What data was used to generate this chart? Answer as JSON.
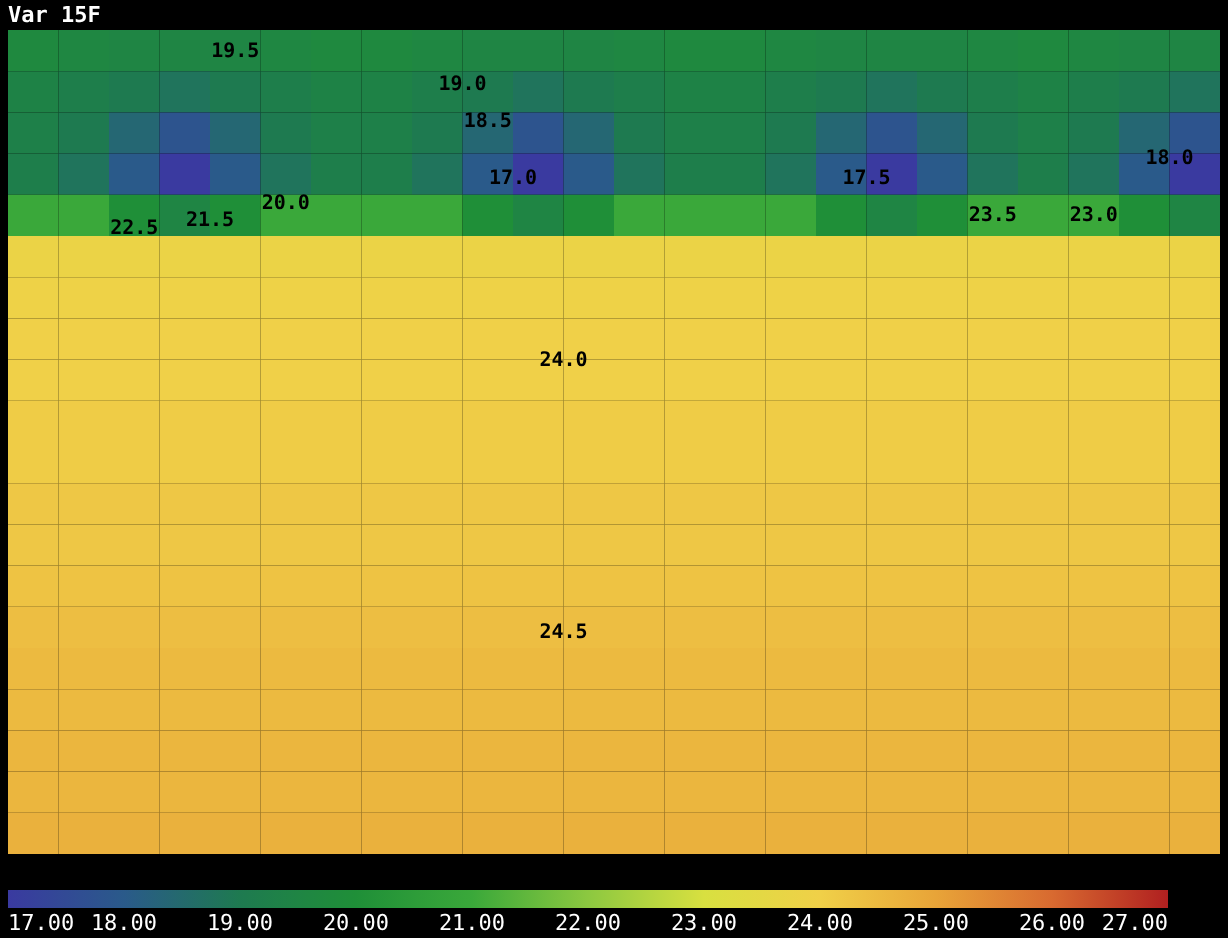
{
  "chart_data": {
    "type": "heatmap",
    "title": "Var 15F",
    "categories": [
      null,
      null,
      null,
      null,
      null,
      null,
      null,
      null,
      null,
      null,
      null,
      null,
      null,
      null,
      null,
      null,
      null,
      null,
      null,
      null,
      null,
      null,
      null,
      null
    ],
    "y_categories": [
      null,
      null,
      null,
      null,
      null,
      null,
      null,
      null,
      null,
      null,
      null,
      null,
      null,
      null,
      null,
      null,
      null,
      null,
      null,
      null
    ],
    "cells": [
      [
        19.7,
        19.6,
        19.5,
        19.5,
        19.5,
        19.6,
        19.7,
        19.7,
        19.6,
        19.5,
        19.5,
        19.5,
        19.6,
        19.7,
        19.7,
        19.6,
        19.5,
        19.5,
        19.5,
        19.6,
        19.7,
        19.6,
        19.5,
        19.5
      ],
      [
        19.4,
        19.2,
        19.0,
        18.8,
        19.0,
        19.2,
        19.4,
        19.4,
        19.2,
        19.0,
        18.8,
        19.0,
        19.2,
        19.4,
        19.4,
        19.2,
        19.0,
        18.8,
        19.0,
        19.2,
        19.4,
        19.2,
        19.0,
        18.8
      ],
      [
        19.3,
        19.0,
        18.4,
        17.8,
        18.4,
        19.0,
        19.3,
        19.3,
        19.0,
        18.4,
        17.8,
        18.4,
        19.0,
        19.3,
        19.3,
        19.0,
        18.4,
        17.8,
        18.4,
        19.0,
        19.3,
        19.0,
        18.4,
        17.8
      ],
      [
        19.2,
        18.8,
        18.0,
        17.0,
        18.0,
        18.8,
        19.2,
        19.2,
        18.8,
        18.0,
        17.0,
        18.0,
        18.8,
        19.2,
        19.2,
        18.8,
        18.0,
        17.0,
        18.0,
        18.8,
        19.2,
        18.8,
        18.0,
        17.0
      ],
      [
        21.0,
        21.0,
        20.0,
        19.5,
        20.0,
        21.0,
        21.0,
        21.0,
        21.0,
        20.0,
        19.5,
        20.0,
        21.0,
        21.0,
        21.0,
        21.0,
        20.0,
        19.5,
        20.0,
        21.0,
        21.0,
        21.0,
        20.0,
        19.5
      ],
      [
        23.8,
        23.8,
        23.8,
        23.8,
        23.8,
        23.8,
        23.8,
        23.8,
        23.8,
        23.8,
        23.8,
        23.8,
        23.8,
        23.8,
        23.8,
        23.8,
        23.8,
        23.8,
        23.8,
        23.8,
        23.8,
        23.8,
        23.8,
        23.8
      ],
      [
        23.9,
        23.9,
        23.9,
        23.9,
        23.9,
        23.9,
        23.9,
        23.9,
        23.9,
        23.9,
        23.9,
        23.9,
        23.9,
        23.9,
        23.9,
        23.9,
        23.9,
        23.9,
        23.9,
        23.9,
        23.9,
        23.9,
        23.9,
        23.9
      ],
      [
        24.0,
        24.0,
        24.0,
        24.0,
        24.0,
        24.0,
        24.0,
        24.0,
        24.0,
        24.0,
        24.0,
        24.0,
        24.0,
        24.0,
        24.0,
        24.0,
        24.0,
        24.0,
        24.0,
        24.0,
        24.0,
        24.0,
        24.0,
        24.0
      ],
      [
        24.0,
        24.0,
        24.0,
        24.0,
        24.0,
        24.0,
        24.0,
        24.0,
        24.0,
        24.0,
        24.0,
        24.0,
        24.0,
        24.0,
        24.0,
        24.0,
        24.0,
        24.0,
        24.0,
        24.0,
        24.0,
        24.0,
        24.0,
        24.0
      ],
      [
        24.1,
        24.1,
        24.1,
        24.1,
        24.1,
        24.1,
        24.1,
        24.1,
        24.1,
        24.1,
        24.1,
        24.1,
        24.1,
        24.1,
        24.1,
        24.1,
        24.1,
        24.1,
        24.1,
        24.1,
        24.1,
        24.1,
        24.1,
        24.1
      ],
      [
        24.1,
        24.1,
        24.1,
        24.1,
        24.1,
        24.1,
        24.1,
        24.1,
        24.1,
        24.1,
        24.1,
        24.1,
        24.1,
        24.1,
        24.1,
        24.1,
        24.1,
        24.1,
        24.1,
        24.1,
        24.1,
        24.1,
        24.1,
        24.1
      ],
      [
        24.2,
        24.2,
        24.2,
        24.2,
        24.2,
        24.2,
        24.2,
        24.2,
        24.2,
        24.2,
        24.2,
        24.2,
        24.2,
        24.2,
        24.2,
        24.2,
        24.2,
        24.2,
        24.2,
        24.2,
        24.2,
        24.2,
        24.2,
        24.2
      ],
      [
        24.2,
        24.2,
        24.2,
        24.2,
        24.2,
        24.2,
        24.2,
        24.2,
        24.2,
        24.2,
        24.2,
        24.2,
        24.2,
        24.2,
        24.2,
        24.2,
        24.2,
        24.2,
        24.2,
        24.2,
        24.2,
        24.2,
        24.2,
        24.2
      ],
      [
        24.3,
        24.3,
        24.3,
        24.3,
        24.3,
        24.3,
        24.3,
        24.3,
        24.3,
        24.3,
        24.3,
        24.3,
        24.3,
        24.3,
        24.3,
        24.3,
        24.3,
        24.3,
        24.3,
        24.3,
        24.3,
        24.3,
        24.3,
        24.3
      ],
      [
        24.4,
        24.4,
        24.4,
        24.4,
        24.4,
        24.4,
        24.4,
        24.4,
        24.4,
        24.4,
        24.4,
        24.4,
        24.4,
        24.4,
        24.4,
        24.4,
        24.4,
        24.4,
        24.4,
        24.4,
        24.4,
        24.4,
        24.4,
        24.4
      ],
      [
        24.5,
        24.5,
        24.5,
        24.5,
        24.5,
        24.5,
        24.5,
        24.5,
        24.5,
        24.5,
        24.5,
        24.5,
        24.5,
        24.5,
        24.5,
        24.5,
        24.5,
        24.5,
        24.5,
        24.5,
        24.5,
        24.5,
        24.5,
        24.5
      ],
      [
        24.5,
        24.5,
        24.5,
        24.5,
        24.5,
        24.5,
        24.5,
        24.5,
        24.5,
        24.5,
        24.5,
        24.5,
        24.5,
        24.5,
        24.5,
        24.5,
        24.5,
        24.5,
        24.5,
        24.5,
        24.5,
        24.5,
        24.5,
        24.5
      ],
      [
        24.6,
        24.6,
        24.6,
        24.6,
        24.6,
        24.6,
        24.6,
        24.6,
        24.6,
        24.6,
        24.6,
        24.6,
        24.6,
        24.6,
        24.6,
        24.6,
        24.6,
        24.6,
        24.6,
        24.6,
        24.6,
        24.6,
        24.6,
        24.6
      ],
      [
        24.6,
        24.6,
        24.6,
        24.6,
        24.6,
        24.6,
        24.6,
        24.6,
        24.6,
        24.6,
        24.6,
        24.6,
        24.6,
        24.6,
        24.6,
        24.6,
        24.6,
        24.6,
        24.6,
        24.6,
        24.6,
        24.6,
        24.6,
        24.6
      ],
      [
        24.7,
        24.7,
        24.7,
        24.7,
        24.7,
        24.7,
        24.7,
        24.7,
        24.7,
        24.7,
        24.7,
        24.7,
        24.7,
        24.7,
        24.7,
        24.7,
        24.7,
        24.7,
        24.7,
        24.7,
        24.7,
        24.7,
        24.7,
        24.7
      ]
    ],
    "clim": [
      17,
      27
    ],
    "cticks": [
      {
        "value": 17,
        "label": "17.00"
      },
      {
        "value": 18,
        "label": "18.00"
      },
      {
        "value": 19,
        "label": "19.00"
      },
      {
        "value": 20,
        "label": "20.00"
      },
      {
        "value": 21,
        "label": "21.00"
      },
      {
        "value": 22,
        "label": "22.00"
      },
      {
        "value": 23,
        "label": "23.00"
      },
      {
        "value": 24,
        "label": "24.00"
      },
      {
        "value": 25,
        "label": "25.00"
      },
      {
        "value": 26,
        "label": "26.00"
      },
      {
        "value": 27,
        "label": "27.00"
      }
    ],
    "annotations": [
      "19.5",
      "19.0",
      "18.5",
      "17.0",
      "17.5",
      "18.0",
      "20.0",
      "21.5",
      "22.5",
      "23.5",
      "23.0",
      "24.0",
      "24.5"
    ]
  }
}
